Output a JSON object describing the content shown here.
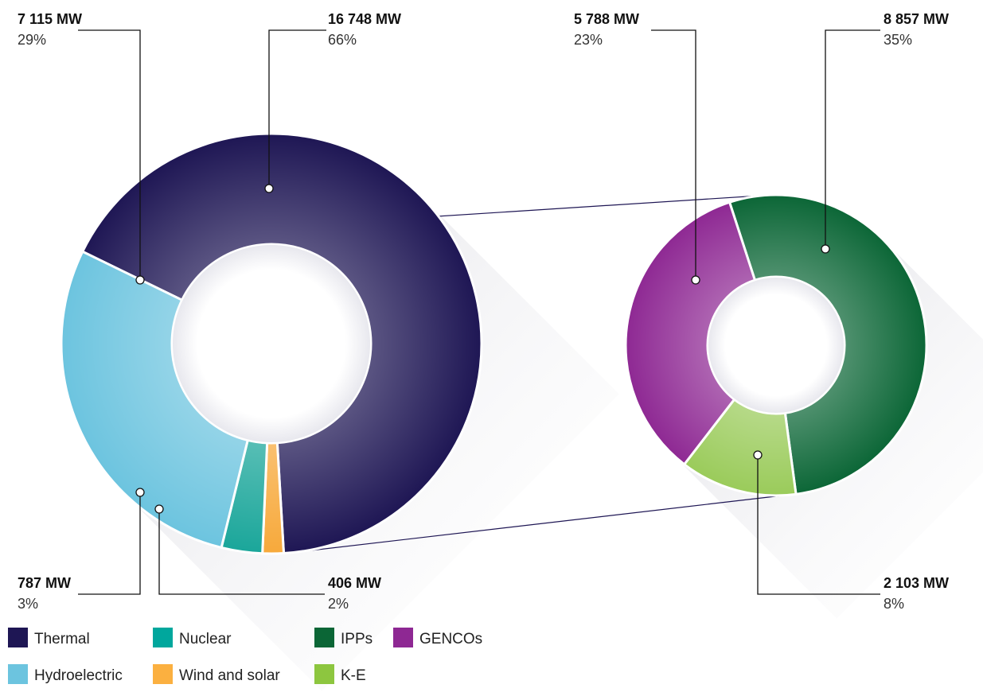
{
  "chart_data": [
    {
      "type": "pie",
      "variant": "donut",
      "segments": [
        {
          "key": "thermal",
          "label": "Thermal",
          "value": 16748,
          "value_label": "16 748 MW",
          "percent_label": "66%",
          "color": "#1e1654"
        },
        {
          "key": "wind_solar",
          "label": "Wind and solar",
          "value": 406,
          "value_label": "406 MW",
          "percent_label": "2%",
          "color": "#f7a93b"
        },
        {
          "key": "nuclear",
          "label": "Nuclear",
          "value": 787,
          "value_label": "787 MW",
          "percent_label": "3%",
          "color": "#1aa69a"
        },
        {
          "key": "hydro",
          "label": "Hydroelectric",
          "value": 7115,
          "value_label": "7 115 MW",
          "percent_label": "29%",
          "color": "#6cc4df"
        }
      ]
    },
    {
      "type": "pie",
      "variant": "donut",
      "breakdown_of": "Thermal",
      "segments": [
        {
          "key": "ipps",
          "label": "IPPs",
          "value": 8857,
          "value_label": "8 857 MW",
          "percent_label": "35%",
          "color": "#0b6636"
        },
        {
          "key": "ke",
          "label": "K-E",
          "value": 2103,
          "value_label": "2 103 MW",
          "percent_label": "8%",
          "color": "#9acb5a"
        },
        {
          "key": "gencos",
          "label": "GENCOs",
          "value": 5788,
          "value_label": "5 788 MW",
          "percent_label": "23%",
          "color": "#8e2893"
        }
      ]
    }
  ],
  "legend": [
    {
      "label": "Thermal",
      "color": "#1e1654"
    },
    {
      "label": "Nuclear",
      "color": "#00a79d"
    },
    {
      "label": "IPPs",
      "color": "#0b6636"
    },
    {
      "label": "GENCOs",
      "color": "#8e2893"
    },
    {
      "label": "Hydroelectric",
      "color": "#6cc4df"
    },
    {
      "label": "Wind and solar",
      "color": "#fbb040"
    },
    {
      "label": "K-E",
      "color": "#8dc63f"
    }
  ]
}
